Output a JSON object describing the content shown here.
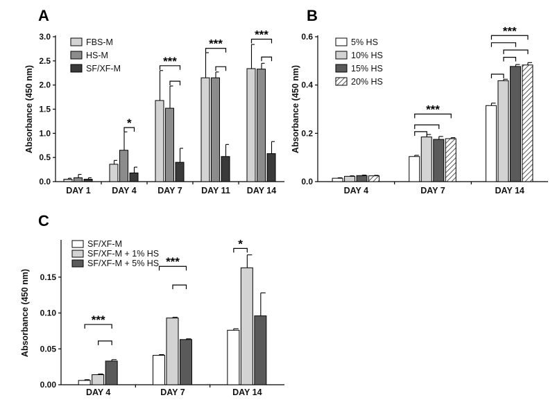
{
  "chart_data": [
    {
      "type": "bar",
      "panel": "A",
      "ylabel": "Absorbance (450 nm)",
      "ylim": [
        0,
        3.0
      ],
      "yticks": [
        "0.0",
        "0.5",
        "1.0",
        "1.5",
        "2.0",
        "2.5",
        "3.0"
      ],
      "categories": [
        "DAY 1",
        "DAY 4",
        "DAY 7",
        "DAY 11",
        "DAY 14"
      ],
      "legend_position": "top-left",
      "series": [
        {
          "name": "FBS-M",
          "fill": "#d3d3d3",
          "values": [
            0.05,
            0.36,
            1.68,
            2.15,
            2.34
          ],
          "errors": [
            0.02,
            0.08,
            0.62,
            0.52,
            0.5
          ]
        },
        {
          "name": "HS-M",
          "fill": "#8c8c8c",
          "values": [
            0.08,
            0.65,
            1.52,
            2.15,
            2.33
          ],
          "errors": [
            0.07,
            0.38,
            0.46,
            0.12,
            0.12
          ]
        },
        {
          "name": "SF/XF-M",
          "fill": "#3a3a3a",
          "values": [
            0.05,
            0.18,
            0.4,
            0.52,
            0.58
          ],
          "errors": [
            0.03,
            0.12,
            0.29,
            0.25,
            0.25
          ]
        }
      ],
      "significance": [
        {
          "category": 1,
          "from": 1,
          "to": 2,
          "label": "*",
          "y": 1.12
        },
        {
          "category": 2,
          "from": 0,
          "to": 2,
          "label": "***",
          "y": 2.4
        },
        {
          "category": 2,
          "from": 1,
          "to": 2,
          "label": "",
          "y": 2.08
        },
        {
          "category": 3,
          "from": 0,
          "to": 2,
          "label": "***",
          "y": 2.76
        },
        {
          "category": 3,
          "from": 1,
          "to": 2,
          "label": "",
          "y": 2.38
        },
        {
          "category": 4,
          "from": 0,
          "to": 2,
          "label": "***",
          "y": 2.95
        },
        {
          "category": 4,
          "from": 1,
          "to": 2,
          "label": "",
          "y": 2.58
        }
      ]
    },
    {
      "type": "bar",
      "panel": "B",
      "ylabel": "Absorbance (450 nm)",
      "ylim": [
        0,
        0.6
      ],
      "yticks": [
        "0.0",
        "0.2",
        "0.4",
        "0.6"
      ],
      "categories": [
        "DAY 4",
        "DAY 7",
        "DAY 14"
      ],
      "legend_position": "top-left",
      "series": [
        {
          "name": "5% HS",
          "fill": "#ffffff",
          "values": [
            0.014,
            0.104,
            0.315
          ],
          "errors": [
            0.002,
            0.005,
            0.01
          ]
        },
        {
          "name": "10% HS",
          "fill": "#d3d3d3",
          "values": [
            0.022,
            0.185,
            0.418
          ],
          "errors": [
            0.002,
            0.01,
            0.006
          ]
        },
        {
          "name": "15% HS",
          "fill": "#5a5a5a",
          "values": [
            0.025,
            0.175,
            0.477
          ],
          "errors": [
            0.002,
            0.012,
            0.008
          ]
        },
        {
          "name": "20% HS",
          "fill": "hatch",
          "values": [
            0.024,
            0.178,
            0.483
          ],
          "errors": [
            0.002,
            0.004,
            0.01
          ]
        }
      ],
      "significance": [
        {
          "category": 1,
          "from": 0,
          "to": 3,
          "label": "***",
          "y": 0.28
        },
        {
          "category": 1,
          "from": 0,
          "to": 2,
          "label": "",
          "y": 0.235
        },
        {
          "category": 1,
          "from": 0,
          "to": 1,
          "label": "",
          "y": 0.207
        },
        {
          "category": 2,
          "from": 0,
          "to": 3,
          "label": "***",
          "y": 0.605
        },
        {
          "category": 2,
          "from": 0,
          "to": 2,
          "label": "",
          "y": 0.575
        },
        {
          "category": 2,
          "from": 1,
          "to": 3,
          "label": "",
          "y": 0.545
        },
        {
          "category": 2,
          "from": 1,
          "to": 2,
          "label": "",
          "y": 0.515
        },
        {
          "category": 2,
          "from": 0,
          "to": 1,
          "label": "",
          "y": 0.445
        }
      ]
    },
    {
      "type": "bar",
      "panel": "C",
      "ylabel": "Absorbance (450 nm)",
      "ylim": [
        0,
        0.2
      ],
      "yticks": [
        "0.00",
        "0.05",
        "0.10",
        "0.15"
      ],
      "ytick_values": [
        0,
        0.05,
        0.1,
        0.15
      ],
      "categories": [
        "DAY 4",
        "DAY 7",
        "DAY 14"
      ],
      "legend_position": "top-left",
      "series": [
        {
          "name": "SF/XF-M",
          "fill": "#ffffff",
          "values": [
            0.006,
            0.041,
            0.076
          ],
          "errors": [
            0.001,
            0.001,
            0.002
          ]
        },
        {
          "name": "SF/XF-M + 1% HS",
          "fill": "#d3d3d3",
          "values": [
            0.014,
            0.093,
            0.163
          ],
          "errors": [
            0.001,
            0.001,
            0.018
          ]
        },
        {
          "name": "SF/XF-M + 5% HS",
          "fill": "#5a5a5a",
          "values": [
            0.033,
            0.063,
            0.096
          ],
          "errors": [
            0.002,
            0.001,
            0.032
          ]
        }
      ],
      "significance": [
        {
          "category": 0,
          "from": 0,
          "to": 2,
          "label": "***",
          "y": 0.084
        },
        {
          "category": 0,
          "from": 1,
          "to": 2,
          "label": "",
          "y": 0.061
        },
        {
          "category": 1,
          "from": 0,
          "to": 2,
          "label": "***",
          "y": 0.165
        },
        {
          "category": 1,
          "from": 1,
          "to": 2,
          "label": "",
          "y": 0.139
        },
        {
          "category": 2,
          "from": 0,
          "to": 1,
          "label": "*",
          "y": 0.19
        }
      ]
    }
  ]
}
